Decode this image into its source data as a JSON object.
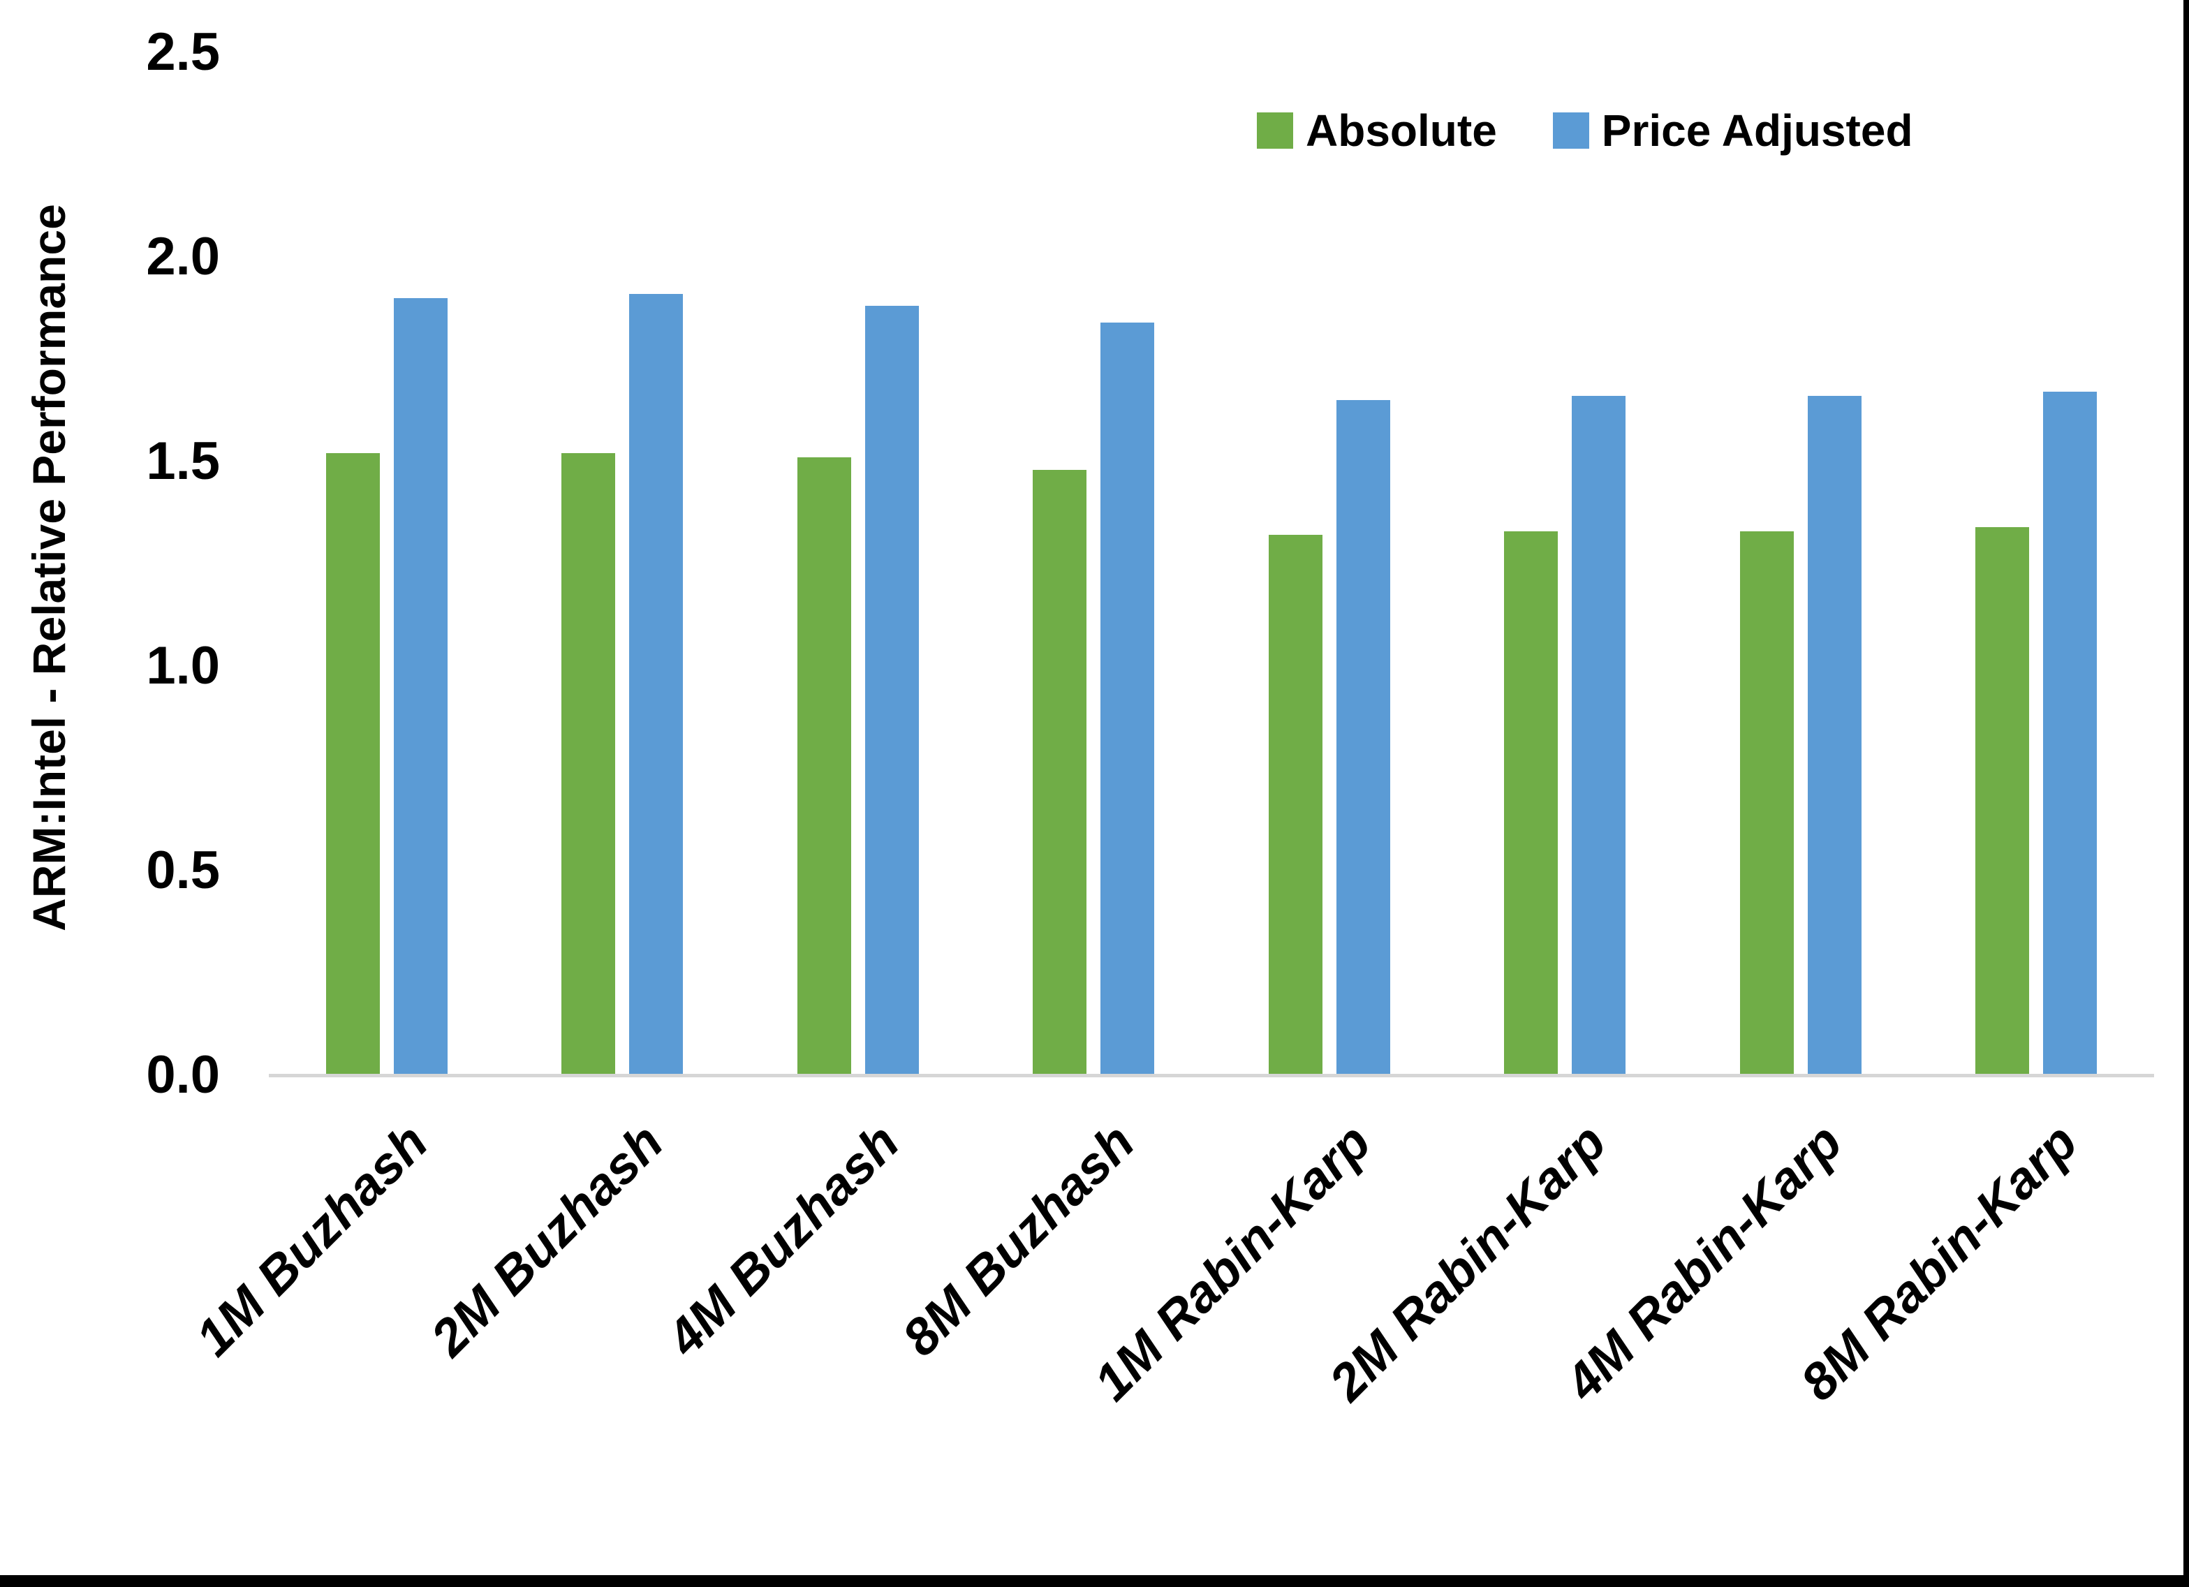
{
  "chart_data": {
    "type": "bar",
    "title": "",
    "xlabel": "",
    "ylabel": "ARM:Intel - Relative Performance",
    "ylim": [
      0,
      2.5
    ],
    "yticks": [
      "0.0",
      "0.5",
      "1.0",
      "1.5",
      "2.0",
      "2.5"
    ],
    "grid": false,
    "legend_position": "top-right",
    "categories": [
      "1M Buzhash",
      "2M Buzhash",
      "4M Buzhash",
      "8M Buzhash",
      "1M Rabin-Karp",
      "2M Rabin-Karp",
      "4M Rabin-Karp",
      "8M Rabin-Karp"
    ],
    "series": [
      {
        "name": "Absolute",
        "color": "#70AD47",
        "values": [
          1.52,
          1.52,
          1.51,
          1.48,
          1.32,
          1.33,
          1.33,
          1.34
        ]
      },
      {
        "name": "Price Adjusted",
        "color": "#5B9BD5",
        "values": [
          1.9,
          1.91,
          1.88,
          1.84,
          1.65,
          1.66,
          1.66,
          1.67
        ]
      }
    ],
    "colors": {
      "axis_line": "#d6d6d6",
      "text": "#000000",
      "background": "#ffffff",
      "frame_border": "#000000"
    }
  }
}
